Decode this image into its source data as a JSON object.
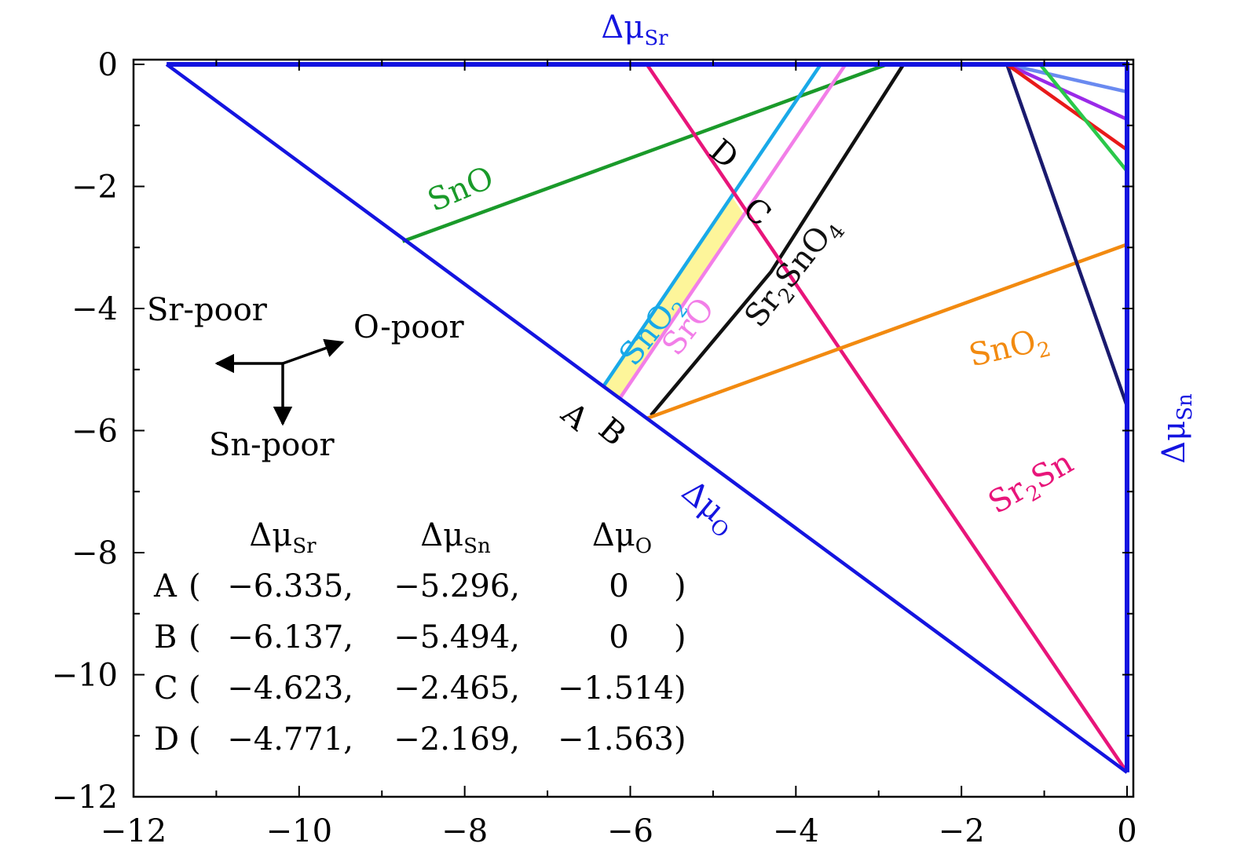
{
  "chart_data": {
    "type": "line",
    "xlim": [
      -12,
      0
    ],
    "ylim": [
      -12,
      0
    ],
    "x_ticks": [
      -12,
      -10,
      -8,
      -6,
      -4,
      -2,
      0
    ],
    "y_ticks": [
      0,
      -2,
      -4,
      -6,
      -8,
      -10,
      -12
    ],
    "x_tick_labels": [
      "−12",
      "−10",
      "−8",
      "−6",
      "−4",
      "−2",
      "0"
    ],
    "y_tick_labels": [
      "0",
      "−2",
      "−4",
      "−6",
      "−8",
      "−10",
      "−12"
    ],
    "axis_labels": {
      "top": {
        "base": "Δμ",
        "sub": "Sr"
      },
      "right": {
        "base": "Δμ",
        "sub": "Sn"
      },
      "diagonal": {
        "base": "Δμ",
        "sub": "O"
      }
    },
    "series": [
      {
        "name": "SnO",
        "color": "#1a9a2a",
        "points": [
          [
            -8.75,
            -2.9
          ],
          [
            -2.9,
            0
          ]
        ]
      },
      {
        "name": "SnO2",
        "color": "#19a9e8",
        "points": [
          [
            -6.335,
            -5.296
          ],
          [
            -3.7,
            0
          ]
        ]
      },
      {
        "name": "SrO",
        "color": "#f27ee8",
        "points": [
          [
            -6.137,
            -5.494
          ],
          [
            -3.4,
            0
          ]
        ]
      },
      {
        "name": "Sr2SnO4",
        "color": "#111111",
        "points": [
          [
            -5.75,
            -5.75
          ],
          [
            -4.3,
            -3.4
          ],
          [
            -2.7,
            0
          ]
        ]
      },
      {
        "name": "Sr2Sn",
        "color": "#e8157a",
        "points": [
          [
            -5.8,
            0
          ],
          [
            0,
            -11.6
          ]
        ]
      },
      {
        "name": "SnO2",
        "color": "#f28a10",
        "points": [
          [
            -5.8,
            -5.8
          ],
          [
            0,
            -2.95
          ]
        ]
      },
      {
        "name": "",
        "color": "#1a1a6e",
        "points": [
          [
            -1.45,
            0
          ],
          [
            0,
            -5.6
          ]
        ]
      },
      {
        "name": "",
        "color": "#6a8af0",
        "points": [
          [
            -1.45,
            0
          ],
          [
            0,
            -0.45
          ]
        ]
      },
      {
        "name": "",
        "color": "#9a2ae8",
        "points": [
          [
            -1.45,
            0
          ],
          [
            0,
            -0.9
          ]
        ]
      },
      {
        "name": "",
        "color": "#e81a1a",
        "points": [
          [
            -1.45,
            0
          ],
          [
            0,
            -1.4
          ]
        ]
      },
      {
        "name": "",
        "color": "#2ac84a",
        "points": [
          [
            -1.05,
            0
          ],
          [
            0,
            -1.75
          ]
        ]
      }
    ],
    "boundary": {
      "color": "#1414e0",
      "points": [
        [
          -11.6,
          0
        ],
        [
          0,
          0
        ],
        [
          0,
          -11.6
        ]
      ],
      "diagonal": [
        [
          -11.6,
          0
        ],
        [
          0,
          -11.6
        ]
      ]
    },
    "stable_region": {
      "color": "#fdf59a",
      "points": [
        [
          -6.335,
          -5.296
        ],
        [
          -6.137,
          -5.494
        ],
        [
          -4.623,
          -2.465
        ],
        [
          -4.771,
          -2.169
        ]
      ]
    },
    "line_labels": [
      {
        "text": "SnO",
        "sub": "",
        "color": "#1a9a2a",
        "x": -8.0,
        "y": -2.2,
        "angle": -23
      },
      {
        "text": "SnO",
        "sub": "2",
        "color": "#19a9e8",
        "x": -5.65,
        "y": -4.45,
        "angle": -52
      },
      {
        "text": "SrO",
        "sub": "",
        "color": "#f27ee8",
        "x": -5.2,
        "y": -4.4,
        "angle": -52
      },
      {
        "text": "Sr",
        "sub": "2",
        "tail": "SnO",
        "sub2": "4",
        "color": "#111111",
        "x": -3.95,
        "y": -3.5,
        "angle": -52
      },
      {
        "text": "SnO",
        "sub": "2",
        "color": "#f28a10",
        "x": -1.4,
        "y": -4.8,
        "angle": -13
      },
      {
        "text": "Sr",
        "sub": "2",
        "tail": "Sn",
        "color": "#e8157a",
        "x": -1.1,
        "y": -7.0,
        "angle": -30
      }
    ],
    "point_labels": [
      {
        "text": "A",
        "x": -6.75,
        "y": -5.9,
        "angle": 40
      },
      {
        "text": "B",
        "x": -6.3,
        "y": -6.15,
        "angle": 40
      },
      {
        "text": "C",
        "x": -4.55,
        "y": -2.55,
        "angle": 40
      },
      {
        "text": "D",
        "x": -4.95,
        "y": -1.6,
        "angle": 40
      }
    ],
    "annotations": {
      "sr_poor": "Sr-poor",
      "o_poor": "O-poor",
      "sn_poor": "Sn-poor"
    },
    "table": {
      "headers": [
        {
          "base": "Δμ",
          "sub": "Sr"
        },
        {
          "base": "Δμ",
          "sub": "Sn"
        },
        {
          "base": "Δμ",
          "sub": "O"
        }
      ],
      "rows": [
        {
          "label": "A",
          "values": [
            "−6.335,",
            "−5.296,",
            "0"
          ],
          "close": ")"
        },
        {
          "label": "B",
          "values": [
            "−6.137,",
            "−5.494,",
            "0"
          ],
          "close": ")"
        },
        {
          "label": "C",
          "values": [
            "−4.623,",
            "−2.465,",
            "−1.514"
          ],
          "close": ")"
        },
        {
          "label": "D",
          "values": [
            "−4.771,",
            "−2.169,",
            "−1.563"
          ],
          "close": ")"
        }
      ]
    }
  }
}
